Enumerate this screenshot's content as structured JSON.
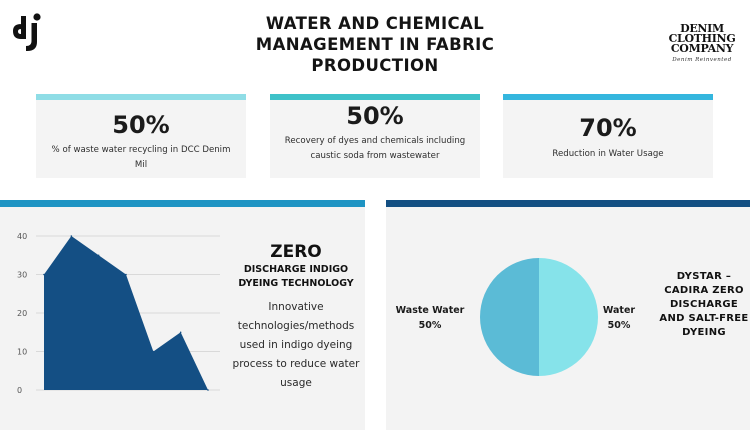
{
  "header": {
    "title": "WATER AND CHEMICAL MANAGEMENT IN FABRIC PRODUCTION",
    "brand": {
      "lines": [
        "DENIM",
        "CLOTHING",
        "COMPANY"
      ],
      "tagline": "Denim Reinvented"
    }
  },
  "stats": [
    {
      "value": "50%",
      "description": "% of waste water recycling in DCC Denim Mil",
      "accent": "#8fdde6"
    },
    {
      "value": "50%",
      "description": "Recovery of dyes and chemicals including caustic soda from wastewater",
      "accent": "#3ec2c9"
    },
    {
      "value": "70%",
      "description": "Reduction in Water Usage",
      "accent": "#34b6de"
    }
  ],
  "left_panel": {
    "accent": "#1e94c3",
    "heading": "ZERO",
    "subheading": "DISCHARGE INDIGO DYEING TECHNOLOGY",
    "description": "Innovative technologies/methods used in indigo dyeing process to reduce water usage"
  },
  "right_panel": {
    "accent": "#134f82",
    "title": "DYSTAR – CADIRA ZERO DISCHARGE AND SALT-FREE DYEING"
  },
  "chart_data": [
    {
      "type": "area",
      "x": [
        0,
        1,
        2,
        3,
        4,
        5,
        6
      ],
      "values": [
        30,
        40,
        35,
        30,
        10,
        15,
        0
      ],
      "ylim": [
        0,
        40
      ],
      "yticks": [
        "0",
        "10",
        "20",
        "30",
        "40"
      ],
      "grid": true,
      "color": "#144f84"
    },
    {
      "type": "pie",
      "slices": [
        {
          "label": "Water",
          "percent": "50%",
          "value": 50,
          "color": "#86e3ea"
        },
        {
          "label": "Waste Water",
          "percent": "50%",
          "value": 50,
          "color": "#5bbbd6"
        }
      ]
    }
  ]
}
